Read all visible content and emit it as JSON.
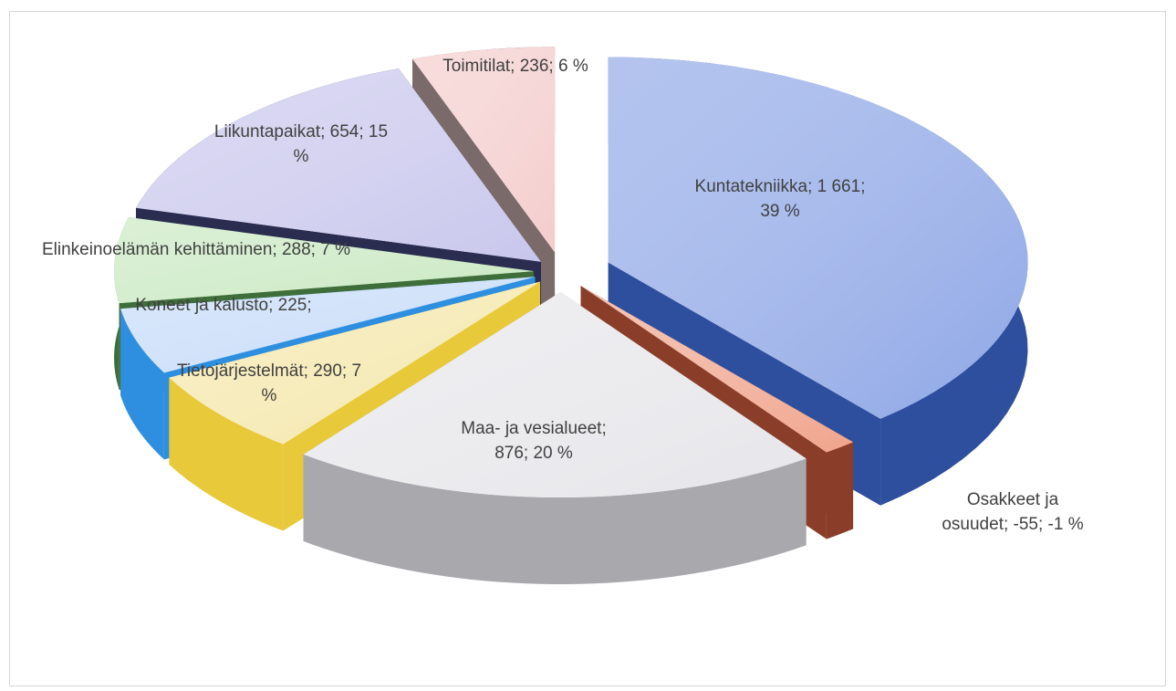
{
  "chart_data": {
    "type": "pie",
    "style": "exploded 3D pie",
    "slices": [
      {
        "name": "Kuntatekniikka",
        "value": 1661,
        "percent": 39,
        "label": [
          "Kuntatekniikka; 1 661;",
          "39 %"
        ],
        "top": "#8ea6e6",
        "side": "#2e4f9e"
      },
      {
        "name": "Osakkeet ja osuudet",
        "value": -55,
        "percent": -1,
        "label": [
          "Osakkeet ja",
          "osuudet; -55; -1 %"
        ],
        "top": "#f0a48c",
        "side": "#8a3e2a"
      },
      {
        "name": "Maa- ja vesialueet",
        "value": 876,
        "percent": 20,
        "label": [
          "Maa- ja vesialueet;",
          "876; 20 %"
        ],
        "top": "#e6e6ea",
        "side": "#a8a8ad"
      },
      {
        "name": "Tietojärjestelmät",
        "value": 290,
        "percent": 7,
        "label": [
          "Tietojärjestelmät; 290; 7",
          "%"
        ],
        "top": "#f4e6a8",
        "side": "#e8c93a"
      },
      {
        "name": "Koneet ja kalusto",
        "value": 225,
        "percent": 5,
        "label": [
          "Koneet ja kalusto; 225;"
        ],
        "top": "#c4daf8",
        "side": "#2e8fe0"
      },
      {
        "name": "Elinkeinoelämän kehittäminen",
        "value": 288,
        "percent": 7,
        "label": [
          "Elinkeinoelämän kehittäminen; 288; 7 %"
        ],
        "top": "#c8e8c0",
        "side": "#3f6e3a"
      },
      {
        "name": "Liikuntapaikat",
        "value": 654,
        "percent": 15,
        "label": [
          "Liikuntapaikat; 654; 15",
          "%"
        ],
        "top": "#c8c6ec",
        "side": "#2a2c50"
      },
      {
        "name": "Toimitilat",
        "value": 236,
        "percent": 6,
        "label": [
          "Toimitilat; 236; 6 %"
        ],
        "top": "#f4cccc",
        "side": "#7a6a6a"
      }
    ],
    "legend": "none",
    "title": ""
  }
}
